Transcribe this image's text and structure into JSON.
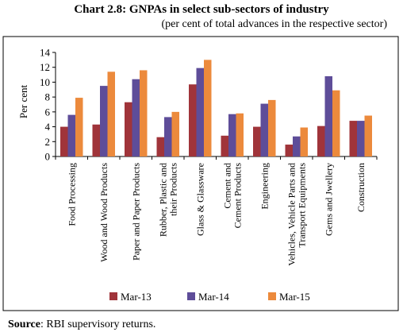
{
  "title": "Chart 2.8: GNPAs in select sub-sectors of industry",
  "subtitle": "(per cent of total advances in the respective sector)",
  "source": {
    "label": "Source",
    "text": ": RBI supervisory returns."
  },
  "colors": {
    "Mar-13": "#a0343a",
    "Mar-14": "#5e4d99",
    "Mar-15": "#ec8a3c"
  },
  "chart_data": {
    "type": "bar",
    "ylabel": "Per cent",
    "xlabel": "",
    "ylim": [
      0,
      14
    ],
    "yticks": [
      0,
      2,
      4,
      6,
      8,
      10,
      12,
      14
    ],
    "grid": false,
    "legend": "bottom",
    "categories": [
      [
        "Food Processing"
      ],
      [
        "Wood  and Wood Products"
      ],
      [
        "Paper and Paper Products"
      ],
      [
        "Rubber, Plastic and",
        "their Products"
      ],
      [
        "Glass & Glassware"
      ],
      [
        "Cement  and",
        "Cement Products"
      ],
      [
        "Engineering"
      ],
      [
        "Vehicles, Vehicle Parts and",
        "Transport Equipments"
      ],
      [
        "Gems and Jwellery"
      ],
      [
        "Construction"
      ]
    ],
    "series": [
      {
        "name": "Mar-13",
        "values": [
          4.0,
          4.3,
          7.3,
          2.6,
          9.7,
          2.8,
          4.0,
          1.6,
          4.1,
          4.8
        ]
      },
      {
        "name": "Mar-14",
        "values": [
          5.6,
          9.5,
          10.4,
          5.3,
          11.9,
          5.7,
          7.1,
          2.7,
          10.8,
          4.8
        ]
      },
      {
        "name": "Mar-15",
        "values": [
          7.9,
          11.4,
          11.6,
          6.0,
          13.0,
          5.8,
          7.6,
          3.9,
          8.9,
          5.5
        ]
      }
    ]
  }
}
